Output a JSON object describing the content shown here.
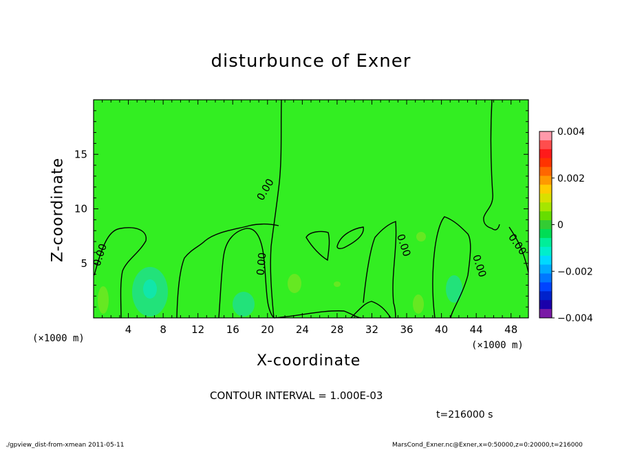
{
  "chart_data": {
    "type": "heatmap",
    "title": "disturbunce of Exner",
    "xlabel": "X-coordinate",
    "ylabel": "Z-coordinate",
    "x_unit": "(×1000 m)",
    "y_unit": "(×1000 m)",
    "xlim": [
      0,
      50
    ],
    "ylim": [
      0,
      20
    ],
    "x_ticks": [
      "4",
      "8",
      "12",
      "16",
      "20",
      "24",
      "28",
      "32",
      "36",
      "40",
      "44",
      "48"
    ],
    "y_ticks": [
      "5",
      "10",
      "15"
    ],
    "contour_interval": "CONTOUR INTERVAL = 1.000E-03",
    "contour_labels": [
      "0.00",
      "0.00",
      "0.00",
      "0.00",
      "0.00",
      "0.00",
      "0.00"
    ],
    "colorbar": {
      "ticks": [
        "0.004",
        "0.002",
        "0",
        "−0.002",
        "−0.004"
      ],
      "range": [
        -0.004,
        0.004
      ],
      "colors": [
        "#ff99aa",
        "#ff4d4d",
        "#ff1a1a",
        "#ff3300",
        "#ff6600",
        "#ff9900",
        "#ffcc00",
        "#d9e000",
        "#a6e600",
        "#66dd00",
        "#33cc33",
        "#00dd55",
        "#00ee99",
        "#00eecc",
        "#00d9ff",
        "#00aaff",
        "#0077ff",
        "#0044ff",
        "#0022cc",
        "#1a00aa",
        "#7a1aa6"
      ],
      "field_color": "#33dd33",
      "background_color": "#33ee22"
    },
    "time": "t=216000 s"
  },
  "footer": {
    "left": "./gpview_dist-from-xmean  2011-05-11",
    "right": "MarsCond_Exner.nc@Exner,x=0:50000,z=0:20000,t=216000"
  }
}
